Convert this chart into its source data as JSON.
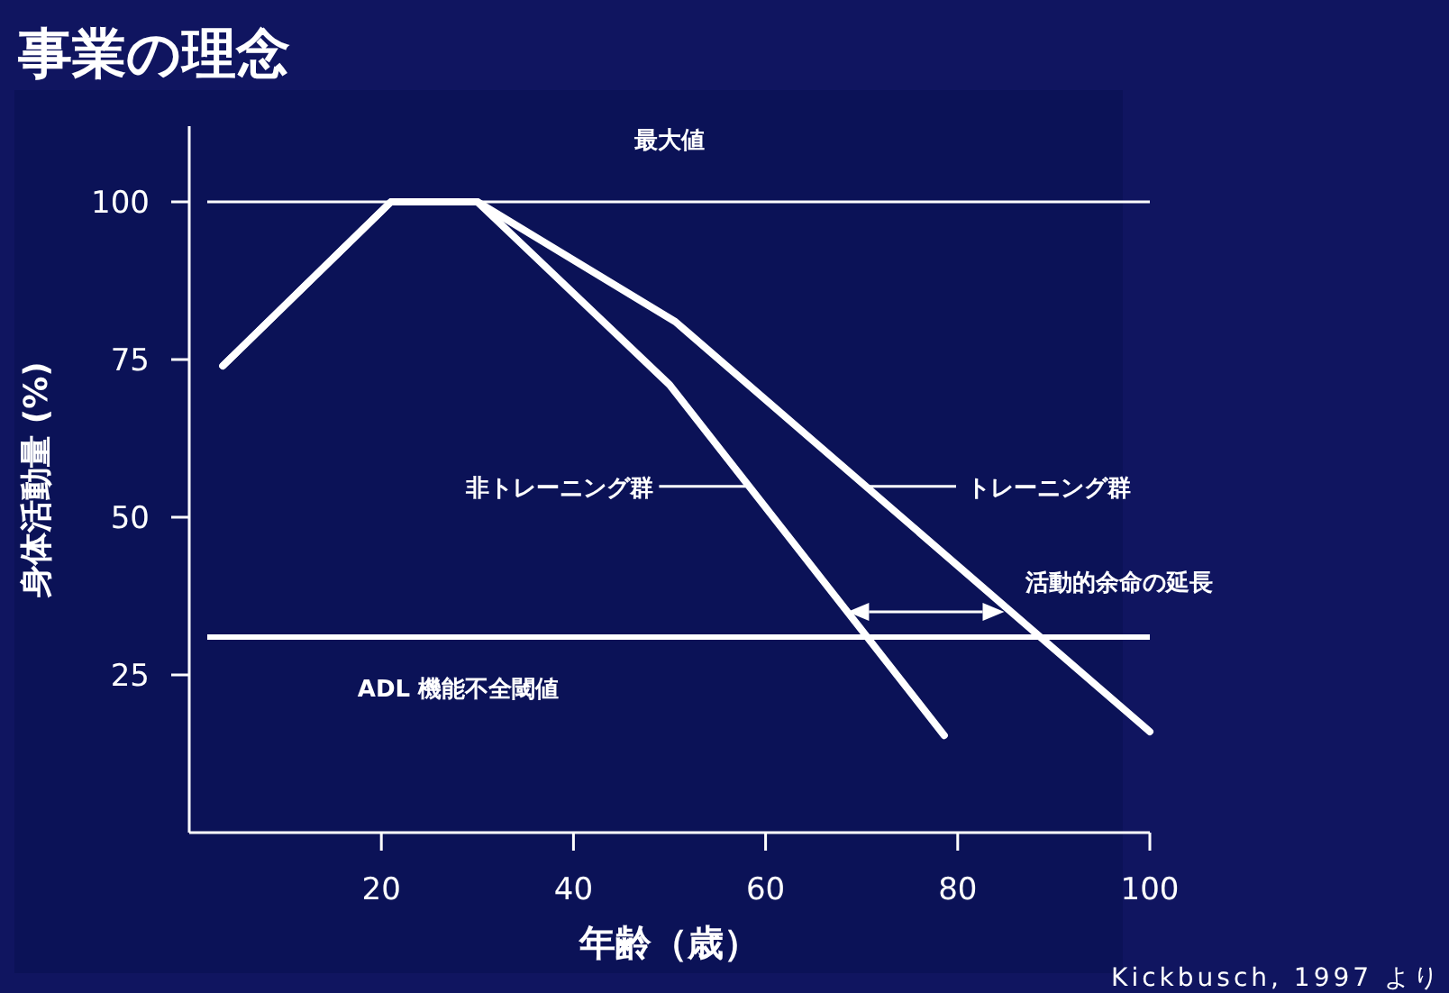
{
  "chart_data": {
    "type": "line",
    "title": "事業の理念",
    "xlabel": "年齢（歳）",
    "ylabel": "身体活動量 (%)",
    "xlim": [
      0,
      100
    ],
    "xticks": [
      20,
      40,
      60,
      80,
      100
    ],
    "ylim": [
      0,
      112
    ],
    "yticks": [
      25,
      50,
      75,
      100
    ],
    "grid": false,
    "legend": "center",
    "marker": "none",
    "line_style": "solid",
    "series": [
      {
        "name": "非トレーニング群",
        "color": "#ffffff",
        "x": [
          3.5,
          21,
          30,
          50,
          78.6
        ],
        "values": [
          74,
          100,
          100,
          71,
          15.4
        ]
      },
      {
        "name": "トレーニング群",
        "color": "#ffffff",
        "x": [
          3.5,
          21,
          30,
          50.6,
          100
        ],
        "values": [
          74,
          100,
          100,
          81,
          16
        ]
      }
    ],
    "ref_lines": [
      {
        "axis": "y",
        "value": 100,
        "label": "最大値",
        "color": "#ffffff"
      },
      {
        "axis": "y",
        "value": 31,
        "label": "ADL 機能不全閾値",
        "color": "#ffffff"
      }
    ],
    "annotations": [
      {
        "text": "活動的余命の延長",
        "x": 85.6,
        "y": 35
      },
      "Kickbusch, 1997 より"
    ]
  }
}
